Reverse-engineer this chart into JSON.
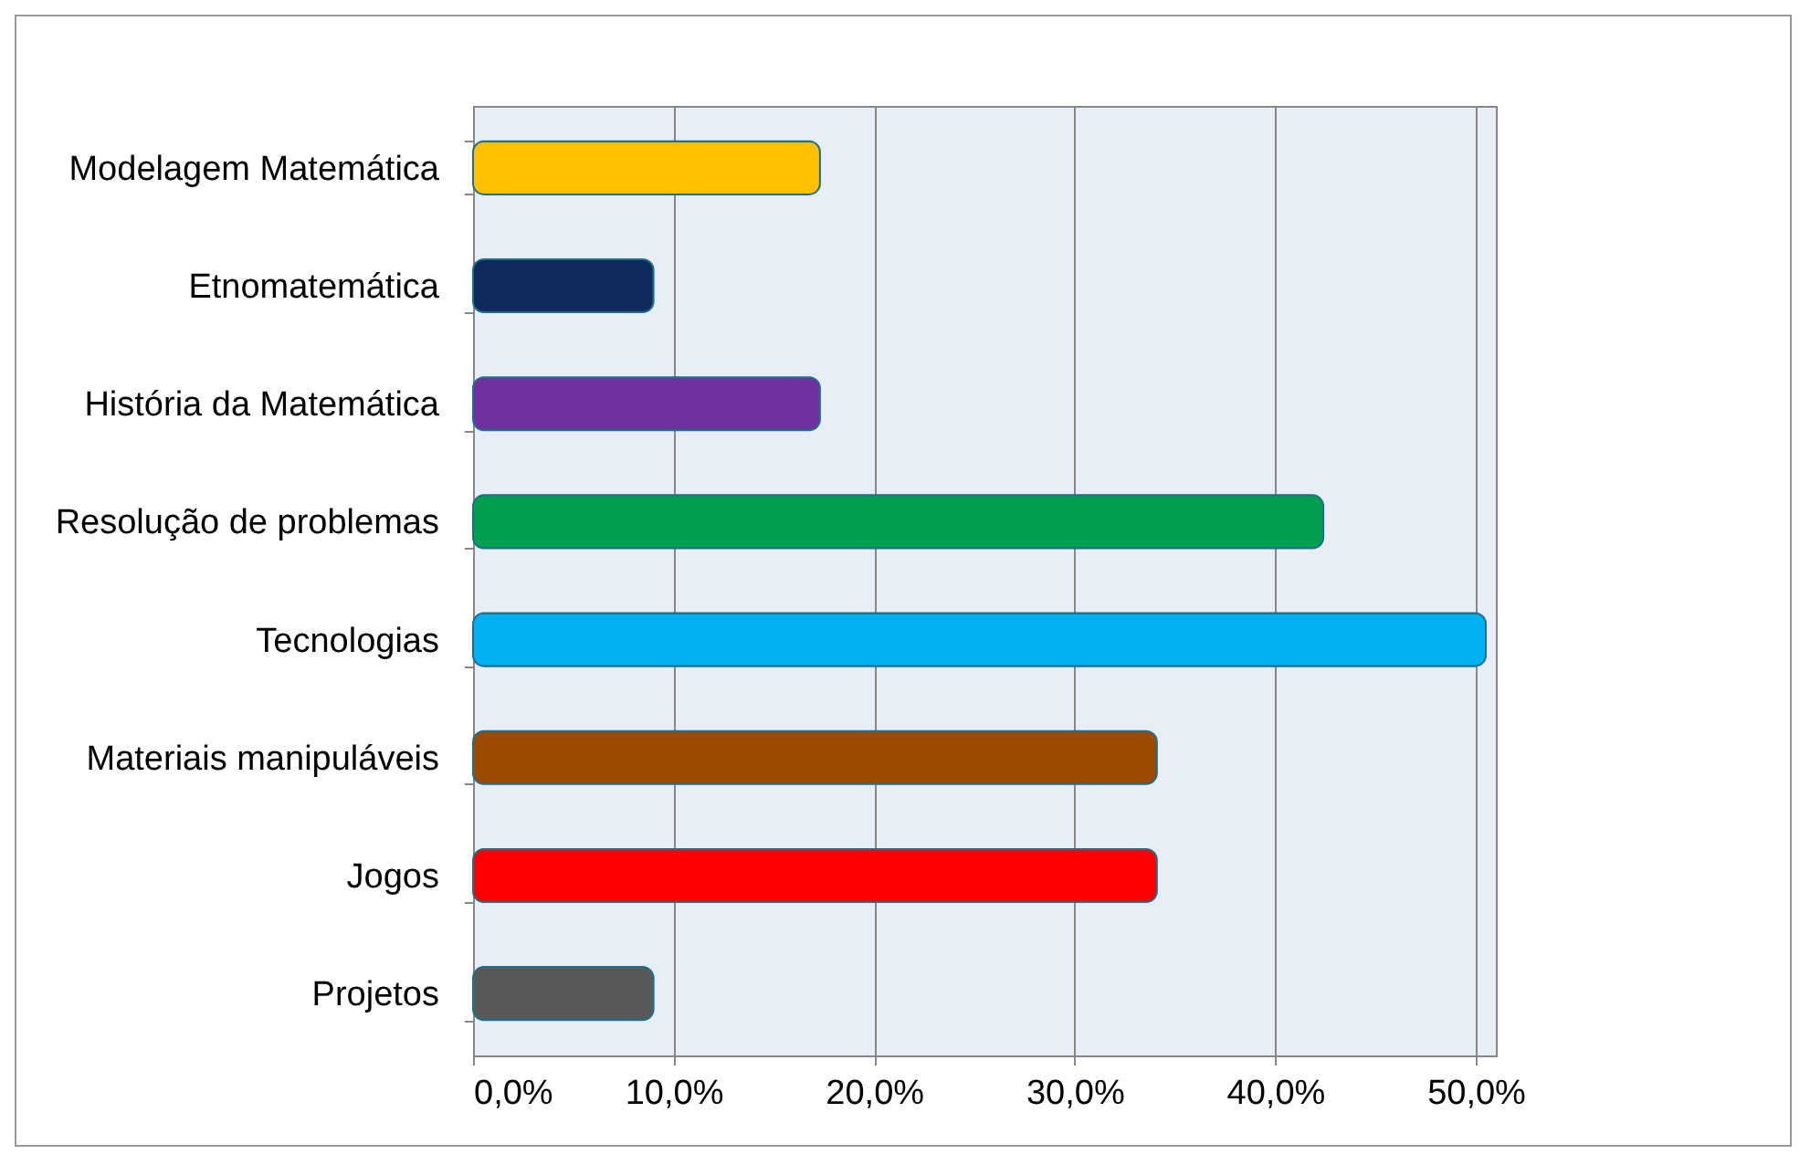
{
  "chart_data": {
    "type": "bar",
    "orientation": "horizontal",
    "categories": [
      "Modelagem Matemática",
      "Etnomatemática",
      "História da Matemática",
      "Resolução de problemas",
      "Tecnologias",
      "Materiais manipuláveis",
      "Jogos",
      "Projetos"
    ],
    "values": [
      17.3,
      9.0,
      17.3,
      42.4,
      50.5,
      34.1,
      34.1,
      9.0
    ],
    "colors": [
      "#ffc000",
      "#0f2a5c",
      "#7030a0",
      "#00a050",
      "#00b0f0",
      "#9c4a00",
      "#ff0000",
      "#595959"
    ],
    "xlim": [
      0,
      51
    ],
    "xticks": [
      {
        "value": 0,
        "label": "0,0%"
      },
      {
        "value": 10,
        "label": "10,0%"
      },
      {
        "value": 20,
        "label": "20,0%"
      },
      {
        "value": 30,
        "label": "30,0%"
      },
      {
        "value": 40,
        "label": "40,0%"
      },
      {
        "value": 50,
        "label": "50,0%"
      }
    ],
    "grid": "x",
    "legend": false
  }
}
